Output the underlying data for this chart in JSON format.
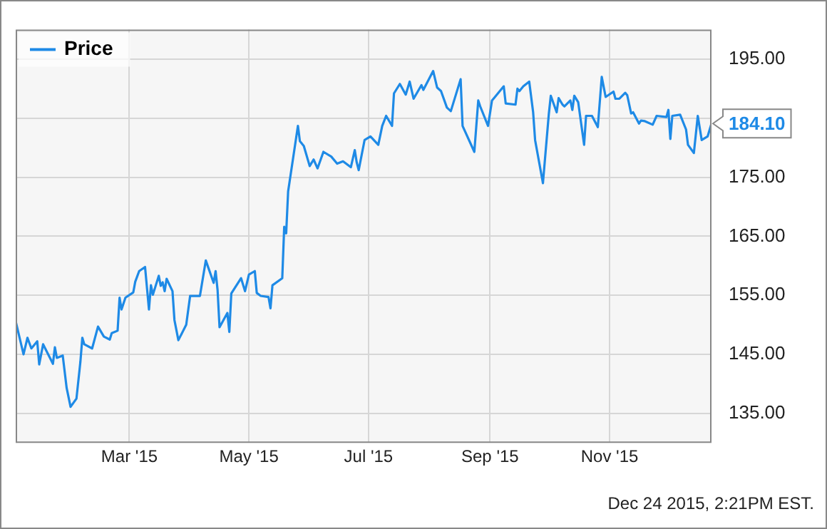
{
  "chart_data": {
    "type": "line",
    "legend": "top left",
    "grid": true,
    "marker": "none",
    "line_style": "solid",
    "xlim": [
      "2015-01-02",
      "2015-12-23"
    ],
    "xticks": [
      {
        "value": "2015-03-01",
        "label": "Mar '15"
      },
      {
        "value": "2015-05-01",
        "label": "May '15"
      },
      {
        "value": "2015-07-01",
        "label": "Jul '15"
      },
      {
        "value": "2015-09-01",
        "label": "Sep '15"
      },
      {
        "value": "2015-11-01",
        "label": "Nov '15"
      }
    ],
    "ylim": [
      130,
      200
    ],
    "yticks": [
      {
        "value": 135,
        "label": "135.00"
      },
      {
        "value": 145,
        "label": "145.00"
      },
      {
        "value": 155,
        "label": "155.00"
      },
      {
        "value": 165,
        "label": "165.00"
      },
      {
        "value": 175,
        "label": "175.00"
      },
      {
        "value": 185,
        "label": null
      },
      {
        "value": 195,
        "label": "195.00"
      }
    ],
    "annotations": [
      {
        "text": "184.10",
        "x": "2015-12-23",
        "y": 184.1
      },
      "Dec 24 2015, 2:21PM EST."
    ],
    "x": [
      "2015-01-02",
      "2015-01-06",
      "2015-01-08",
      "2015-01-10",
      "2015-01-13",
      "2015-01-14",
      "2015-01-16",
      "2015-01-21",
      "2015-01-22",
      "2015-01-23",
      "2015-01-26",
      "2015-01-28",
      "2015-01-30",
      "2015-02-02",
      "2015-02-04",
      "2015-02-05",
      "2015-02-06",
      "2015-02-10",
      "2015-02-13",
      "2015-02-16",
      "2015-02-19",
      "2015-02-20",
      "2015-02-23",
      "2015-02-24",
      "2015-02-25",
      "2015-02-27",
      "2015-03-03",
      "2015-03-04",
      "2015-03-06",
      "2015-03-09",
      "2015-03-11",
      "2015-03-12",
      "2015-03-13",
      "2015-03-16",
      "2015-03-17",
      "2015-03-18",
      "2015-03-19",
      "2015-03-20",
      "2015-03-23",
      "2015-03-24",
      "2015-03-26",
      "2015-03-30",
      "2015-04-01",
      "2015-04-06",
      "2015-04-09",
      "2015-04-13",
      "2015-04-14",
      "2015-04-15",
      "2015-04-16",
      "2015-04-20",
      "2015-04-21",
      "2015-04-22",
      "2015-04-27",
      "2015-04-29",
      "2015-05-01",
      "2015-05-04",
      "2015-05-05",
      "2015-05-07",
      "2015-05-11",
      "2015-05-12",
      "2015-05-13",
      "2015-05-18",
      "2015-05-19",
      "2015-05-20",
      "2015-05-21",
      "2015-05-26",
      "2015-05-27",
      "2015-05-29",
      "2015-06-01",
      "2015-06-03",
      "2015-06-05",
      "2015-06-08",
      "2015-06-12",
      "2015-06-15",
      "2015-06-18",
      "2015-06-22",
      "2015-06-24",
      "2015-06-25",
      "2015-06-26",
      "2015-06-29",
      "2015-07-02",
      "2015-07-06",
      "2015-07-08",
      "2015-07-10",
      "2015-07-13",
      "2015-07-14",
      "2015-07-17",
      "2015-07-20",
      "2015-07-22",
      "2015-07-24",
      "2015-07-28",
      "2015-07-29",
      "2015-08-03",
      "2015-08-05",
      "2015-08-07",
      "2015-08-10",
      "2015-08-12",
      "2015-08-17",
      "2015-08-18",
      "2015-08-24",
      "2015-08-26",
      "2015-08-27",
      "2015-08-31",
      "2015-09-02",
      "2015-09-03",
      "2015-09-08",
      "2015-09-09",
      "2015-09-14",
      "2015-09-15",
      "2015-09-16",
      "2015-09-18",
      "2015-09-21",
      "2015-09-23",
      "2015-09-24",
      "2015-09-28",
      "2015-10-01",
      "2015-10-02",
      "2015-10-05",
      "2015-10-06",
      "2015-10-08",
      "2015-10-09",
      "2015-10-12",
      "2015-10-13",
      "2015-10-14",
      "2015-10-16",
      "2015-10-19",
      "2015-10-20",
      "2015-10-23",
      "2015-10-26",
      "2015-10-28",
      "2015-10-30",
      "2015-11-03",
      "2015-11-04",
      "2015-11-06",
      "2015-11-09",
      "2015-11-10",
      "2015-11-12",
      "2015-11-13",
      "2015-11-16",
      "2015-11-17",
      "2015-11-19",
      "2015-11-23",
      "2015-11-25",
      "2015-11-30",
      "2015-12-01",
      "2015-12-02",
      "2015-12-03",
      "2015-12-07",
      "2015-12-10",
      "2015-12-11",
      "2015-12-14",
      "2015-12-16",
      "2015-12-18",
      "2015-12-21",
      "2015-12-23"
    ],
    "series": [
      {
        "name": "Price",
        "color": "#1e8ae6",
        "values": [
          150.6,
          145.0,
          147.8,
          146.0,
          147.2,
          143.3,
          146.7,
          143.4,
          146.2,
          144.4,
          144.8,
          139.3,
          136.1,
          137.5,
          143.7,
          147.8,
          146.7,
          146.0,
          149.7,
          148.0,
          147.5,
          148.6,
          149.0,
          154.6,
          152.6,
          154.6,
          155.5,
          157.3,
          159.1,
          159.8,
          152.6,
          156.7,
          155.1,
          158.3,
          156.6,
          157.2,
          155.7,
          157.8,
          155.7,
          150.8,
          147.4,
          150.0,
          154.9,
          154.9,
          160.9,
          157.1,
          159.1,
          155.9,
          149.6,
          152.0,
          148.8,
          155.3,
          157.9,
          155.7,
          158.5,
          159.1,
          155.4,
          154.9,
          154.7,
          152.8,
          156.7,
          157.9,
          166.6,
          165.5,
          172.6,
          183.7,
          181.1,
          180.3,
          176.9,
          178.0,
          176.5,
          179.3,
          178.5,
          177.3,
          177.7,
          176.7,
          179.6,
          177.5,
          176.2,
          181.3,
          181.9,
          180.5,
          183.7,
          185.4,
          183.7,
          189.2,
          190.8,
          189.0,
          191.2,
          188.3,
          190.6,
          189.8,
          193.0,
          190.2,
          189.6,
          186.8,
          186.2,
          191.6,
          183.7,
          179.3,
          188.0,
          187.0,
          183.7,
          188.0,
          188.4,
          190.4,
          187.5,
          187.3,
          190.0,
          189.6,
          190.4,
          191.2,
          186.0,
          181.3,
          174.0,
          185.7,
          188.8,
          186.0,
          188.4,
          187.3,
          187.0,
          188.0,
          186.4,
          188.8,
          187.7,
          180.5,
          185.4,
          185.4,
          183.5,
          192.0,
          188.6,
          189.5,
          188.3,
          188.3,
          189.3,
          188.9,
          185.8,
          186.0,
          184.1,
          184.6,
          184.5,
          183.9,
          185.4,
          185.2,
          186.4,
          181.5,
          185.4,
          185.6,
          183.1,
          180.5,
          179.1,
          185.4,
          181.3,
          181.9,
          184.1
        ]
      }
    ]
  }
}
